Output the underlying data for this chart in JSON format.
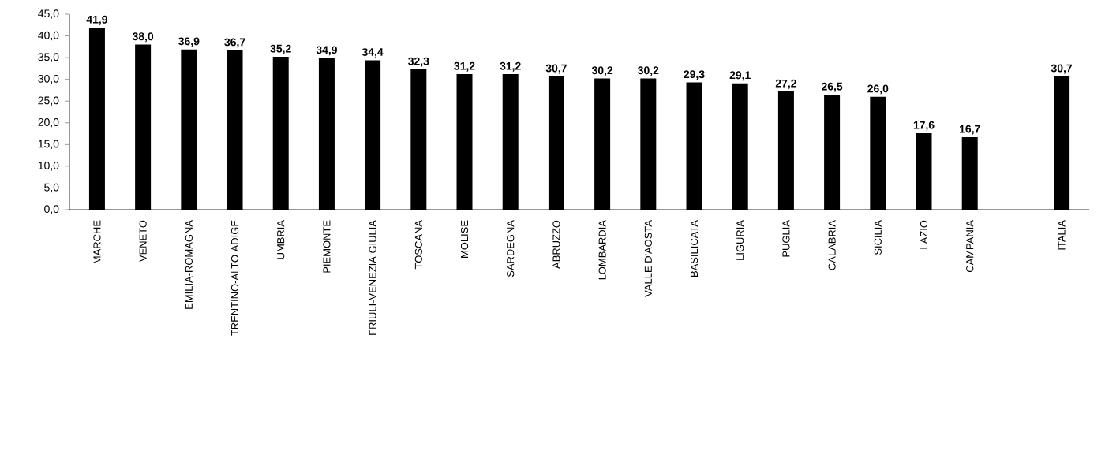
{
  "chart_data": {
    "type": "bar",
    "categories": [
      "MARCHE",
      "VENETO",
      "EMILIA-ROMAGNA",
      "TRENTINO-ALTO ADIGE",
      "UMBRIA",
      "PIEMONTE",
      "FRIULI-VENEZIA GIULIA",
      "TOSCANA",
      "MOLISE",
      "SARDEGNA",
      "ABRUZZO",
      "LOMBARDIA",
      "VALLE D'AOSTA",
      "BASILICATA",
      "LIGURIA",
      "PUGLIA",
      "CALABRIA",
      "SICILIA",
      "LAZIO",
      "CAMPANIA",
      null,
      "ITALIA"
    ],
    "values": [
      41.9,
      38.0,
      36.9,
      36.7,
      35.2,
      34.9,
      34.4,
      32.3,
      31.2,
      31.2,
      30.7,
      30.2,
      30.2,
      29.3,
      29.1,
      27.2,
      26.5,
      26.0,
      17.6,
      16.7,
      null,
      30.7
    ],
    "value_labels": [
      "41,9",
      "38,0",
      "36,9",
      "36,7",
      "35,2",
      "34,9",
      "34,4",
      "32,3",
      "31,2",
      "31,2",
      "30,7",
      "30,2",
      "30,2",
      "29,3",
      "29,1",
      "27,2",
      "26,5",
      "26,0",
      "17,6",
      "16,7",
      null,
      "30,7"
    ],
    "color": "#000000",
    "ylim": [
      0,
      45
    ],
    "yticks": [
      {
        "value": 0,
        "label": "0,0"
      },
      {
        "value": 5,
        "label": "5,0"
      },
      {
        "value": 10,
        "label": "10,0"
      },
      {
        "value": 15,
        "label": "15,0"
      },
      {
        "value": 20,
        "label": "20,0"
      },
      {
        "value": 25,
        "label": "25,0"
      },
      {
        "value": 30,
        "label": "30,0"
      },
      {
        "value": 35,
        "label": "35,0"
      },
      {
        "value": 40,
        "label": "40,0"
      },
      {
        "value": 45,
        "label": "45,0"
      }
    ]
  }
}
